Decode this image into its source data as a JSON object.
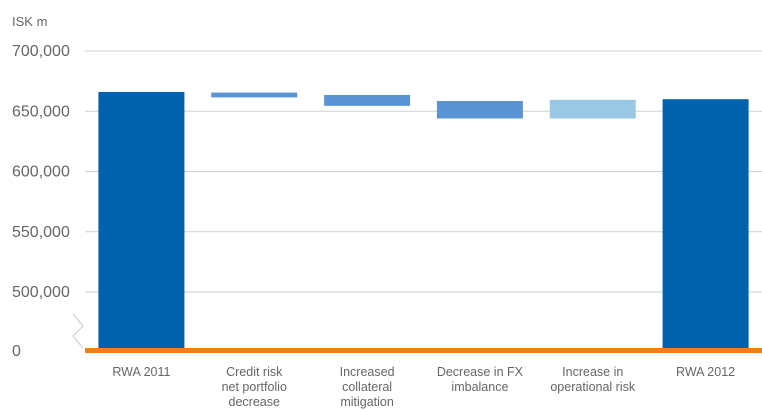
{
  "chart_data": {
    "type": "bar",
    "subtype": "waterfall",
    "unit_label": "ISK m",
    "y_ticks": [
      "700,000",
      "650,000",
      "600,000",
      "550,000",
      "500,000",
      "0"
    ],
    "ylim": [
      480000,
      705000
    ],
    "axis_break": true,
    "grid": true,
    "categories": [
      [
        "RWA 2011"
      ],
      [
        "Credit risk",
        "net portfolio",
        "decrease"
      ],
      [
        "Increased",
        "collateral",
        "mitigation"
      ],
      [
        "Decrease in FX",
        "imbalance"
      ],
      [
        "Increase in",
        "operational risk"
      ],
      [
        "RWA 2012"
      ]
    ],
    "bars": [
      {
        "kind": "total",
        "start": 0,
        "end": 666000,
        "color": "#0061ad"
      },
      {
        "kind": "delta",
        "start": 665500,
        "end": 661500,
        "color": "#5a94d2"
      },
      {
        "kind": "delta",
        "start": 663500,
        "end": 654500,
        "color": "#5a94d2"
      },
      {
        "kind": "delta",
        "start": 658500,
        "end": 644000,
        "color": "#5a94d2"
      },
      {
        "kind": "delta",
        "start": 644000,
        "end": 659500,
        "color": "#9ac8e4"
      },
      {
        "kind": "total",
        "start": 0,
        "end": 660000,
        "color": "#0061ad"
      }
    ],
    "baseline_color": "#f07d1e",
    "grid_color": "#cfcfcf"
  }
}
